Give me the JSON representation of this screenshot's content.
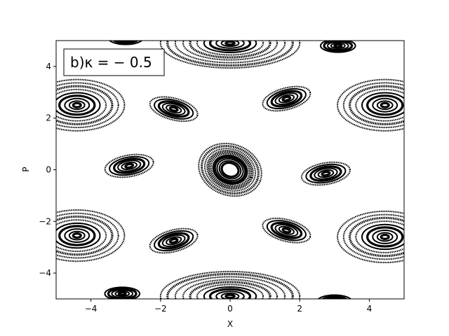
{
  "chart_data": {
    "type": "scatter",
    "subtype": "poincare-section",
    "xlabel": "X",
    "ylabel": "P",
    "xlim": [
      -5,
      5
    ],
    "ylim": [
      -5,
      5
    ],
    "xticks": [
      -4,
      -2,
      0,
      2,
      4
    ],
    "yticks": [
      -4,
      -2,
      0,
      2,
      4
    ],
    "xtick_labels": [
      "−4",
      "−2",
      "0",
      "2",
      "4"
    ],
    "ytick_labels": [
      "−4",
      "−2",
      "0",
      "2",
      "4"
    ],
    "annotation": "b)κ = − 0.5",
    "grid": false,
    "legend": "none",
    "marker_color": "#000000",
    "islands": [
      {
        "x": 0.0,
        "y": 0.0,
        "rx": 0.45,
        "ry": 0.48,
        "rings": [
          0.55,
          0.7,
          0.85,
          1.0,
          1.12,
          1.25,
          1.38,
          1.5,
          1.65,
          1.85,
          2.05
        ],
        "tilt": 20
      },
      {
        "x": 1.62,
        "y": 2.75,
        "rx": 0.22,
        "ry": 0.13,
        "rings": [
          0.5,
          1.0,
          1.5,
          2.0,
          2.6,
          3.2
        ],
        "tilt": -15
      },
      {
        "x": -1.62,
        "y": 2.35,
        "rx": 0.22,
        "ry": 0.13,
        "rings": [
          0.5,
          1.0,
          1.5,
          2.0,
          2.6,
          3.2
        ],
        "tilt": 15
      },
      {
        "x": -2.9,
        "y": 0.15,
        "rx": 0.22,
        "ry": 0.13,
        "rings": [
          0.5,
          1.0,
          1.5,
          2.0,
          2.6,
          3.2
        ],
        "tilt": -10
      },
      {
        "x": 2.75,
        "y": -0.15,
        "rx": 0.22,
        "ry": 0.13,
        "rings": [
          0.5,
          1.0,
          1.5,
          2.0,
          2.6,
          3.2
        ],
        "tilt": -10
      },
      {
        "x": 1.62,
        "y": -2.35,
        "rx": 0.22,
        "ry": 0.13,
        "rings": [
          0.5,
          1.0,
          1.5,
          2.0,
          2.6,
          3.2
        ],
        "tilt": 15
      },
      {
        "x": -1.62,
        "y": -2.75,
        "rx": 0.22,
        "ry": 0.13,
        "rings": [
          0.5,
          1.0,
          1.5,
          2.0,
          2.6,
          3.2
        ],
        "tilt": -15
      },
      {
        "x": -4.4,
        "y": 2.5,
        "rx": 0.22,
        "ry": 0.16,
        "rings": [
          0.5,
          1.0,
          1.6,
          2.3,
          3.0,
          3.8,
          4.6,
          5.4,
          6.2
        ],
        "tilt": 0
      },
      {
        "x": 4.45,
        "y": 2.5,
        "rx": 0.22,
        "ry": 0.16,
        "rings": [
          0.5,
          1.0,
          1.6,
          2.3,
          3.0,
          3.8,
          4.6,
          5.4,
          6.2
        ],
        "tilt": 0
      },
      {
        "x": -4.4,
        "y": -2.55,
        "rx": 0.22,
        "ry": 0.16,
        "rings": [
          0.5,
          1.0,
          1.6,
          2.3,
          3.0,
          3.8,
          4.6,
          5.4,
          6.2
        ],
        "tilt": 0
      },
      {
        "x": 4.45,
        "y": -2.6,
        "rx": 0.22,
        "ry": 0.16,
        "rings": [
          0.5,
          1.0,
          1.6,
          2.3,
          3.0,
          3.8,
          4.6,
          5.4,
          6.2
        ],
        "tilt": 0
      },
      {
        "x": 0.0,
        "y": 4.9,
        "rx": 0.25,
        "ry": 0.12,
        "rings": [
          0.5,
          1.0,
          1.6,
          2.3,
          3.0,
          3.8,
          4.6,
          5.4,
          6.3,
          7.2,
          8.0
        ],
        "tilt": 0
      },
      {
        "x": 0.0,
        "y": -4.9,
        "rx": 0.25,
        "ry": 0.12,
        "rings": [
          0.5,
          1.0,
          1.6,
          2.3,
          3.0,
          3.8,
          4.6,
          5.4,
          6.3,
          7.2,
          8.0
        ],
        "tilt": 0
      },
      {
        "x": 3.1,
        "y": 4.8,
        "rx": 0.2,
        "ry": 0.1,
        "rings": [
          0.5,
          1.0,
          1.5,
          2.0,
          2.5
        ],
        "tilt": 0
      },
      {
        "x": -3.1,
        "y": -4.8,
        "rx": 0.2,
        "ry": 0.1,
        "rings": [
          0.5,
          1.0,
          1.5,
          2.0,
          2.5
        ],
        "tilt": 0
      },
      {
        "x": -3.0,
        "y": 5.1,
        "rx": 0.2,
        "ry": 0.1,
        "rings": [
          1.5,
          2.0,
          2.5
        ],
        "tilt": 0
      },
      {
        "x": 3.0,
        "y": -5.1,
        "rx": 0.2,
        "ry": 0.1,
        "rings": [
          1.5,
          2.0,
          2.5
        ],
        "tilt": 0
      }
    ]
  }
}
